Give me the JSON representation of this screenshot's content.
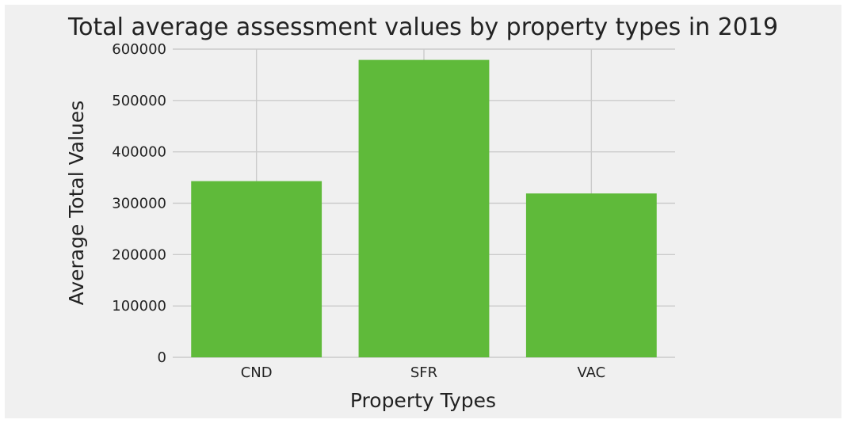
{
  "chart_data": {
    "type": "bar",
    "title": "Total average assessment values by property types in 2019",
    "xlabel": "Property Types",
    "ylabel": "Average Total Values",
    "categories": [
      "CND",
      "SFR",
      "VAC"
    ],
    "values": [
      343000,
      579000,
      319000
    ],
    "ylim": [
      0,
      600000
    ],
    "yticks": [
      0,
      100000,
      200000,
      300000,
      400000,
      500000,
      600000
    ],
    "ytick_labels": [
      "0",
      "100000",
      "200000",
      "300000",
      "400000",
      "500000",
      "600000"
    ],
    "grid": true,
    "bar_color": "#5fba3a",
    "background_color": "#f0f0f0",
    "grid_color": "#cbcbcb"
  }
}
